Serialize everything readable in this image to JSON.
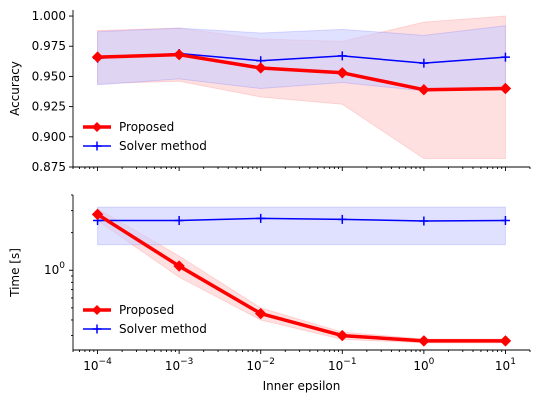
{
  "chart_data": [
    {
      "type": "line",
      "ylabel": "Accuracy",
      "xlabel": "",
      "x": [
        0.0001,
        0.001,
        0.01,
        0.1,
        1,
        10
      ],
      "x_scale": "log",
      "xlim": [
        5e-05,
        20
      ],
      "ylim": [
        0.875,
        1.005
      ],
      "y_scale": "linear",
      "y_ticks": [
        0.875,
        0.9,
        0.925,
        0.95,
        0.975,
        1.0
      ],
      "y_tick_labels": [
        "0.875",
        "0.900",
        "0.925",
        "0.950",
        "0.975",
        "1.000"
      ],
      "show_x_tick_labels": false,
      "legend": "lower-left",
      "grid": false,
      "series": [
        {
          "name": "Proposed",
          "color": "#ff0000",
          "marker": "diamond",
          "values": [
            0.966,
            0.968,
            0.957,
            0.953,
            0.939,
            0.94
          ],
          "band_lower": [
            0.944,
            0.946,
            0.933,
            0.927,
            0.882,
            0.882
          ],
          "band_upper": [
            0.988,
            0.99,
            0.981,
            0.979,
            0.995,
            1.0
          ],
          "band_color": "#ffcccc"
        },
        {
          "name": "Solver method",
          "color": "#0000ff",
          "marker": "plus",
          "values": [
            0.965,
            0.969,
            0.963,
            0.967,
            0.961,
            0.966
          ],
          "band_lower": [
            0.943,
            0.948,
            0.94,
            0.945,
            0.938,
            0.94
          ],
          "band_upper": [
            0.987,
            0.99,
            0.986,
            0.989,
            0.984,
            0.992
          ],
          "band_color": "#ccccff"
        }
      ]
    },
    {
      "type": "line",
      "ylabel": "Time [s]",
      "xlabel": "Inner epsilon",
      "x": [
        0.0001,
        0.001,
        0.01,
        0.1,
        1,
        10
      ],
      "x_scale": "log",
      "xlim": [
        5e-05,
        20
      ],
      "x_ticks": [
        0.0001,
        0.001,
        0.01,
        0.1,
        1,
        10
      ],
      "x_tick_labels": [
        {
          "base": "10",
          "exp": "−4"
        },
        {
          "base": "10",
          "exp": "−3"
        },
        {
          "base": "10",
          "exp": "−2"
        },
        {
          "base": "10",
          "exp": "−1"
        },
        {
          "base": "10",
          "exp": "0"
        },
        {
          "base": "10",
          "exp": "1"
        }
      ],
      "y_scale": "log",
      "ylim": [
        0.23,
        4.0
      ],
      "y_ticks": [
        1
      ],
      "y_tick_labels": [
        {
          "base": "10",
          "exp": "0"
        }
      ],
      "legend": "lower-left",
      "grid": false,
      "series": [
        {
          "name": "Proposed",
          "color": "#ff0000",
          "marker": "diamond",
          "values": [
            2.8,
            1.08,
            0.45,
            0.3,
            0.272,
            0.272
          ],
          "band_lower": [
            2.5,
            0.88,
            0.4,
            0.28,
            0.262,
            0.262
          ],
          "band_upper": [
            3.1,
            1.3,
            0.5,
            0.32,
            0.282,
            0.282
          ],
          "band_color": "#ffcccc"
        },
        {
          "name": "Solver method",
          "color": "#0000ff",
          "marker": "plus",
          "values": [
            2.5,
            2.5,
            2.6,
            2.55,
            2.48,
            2.5
          ],
          "band_lower": [
            1.6,
            1.6,
            1.6,
            1.6,
            1.6,
            1.6
          ],
          "band_upper": [
            3.2,
            3.2,
            3.2,
            3.2,
            3.2,
            3.2
          ],
          "band_color": "#ccccff"
        }
      ]
    }
  ]
}
